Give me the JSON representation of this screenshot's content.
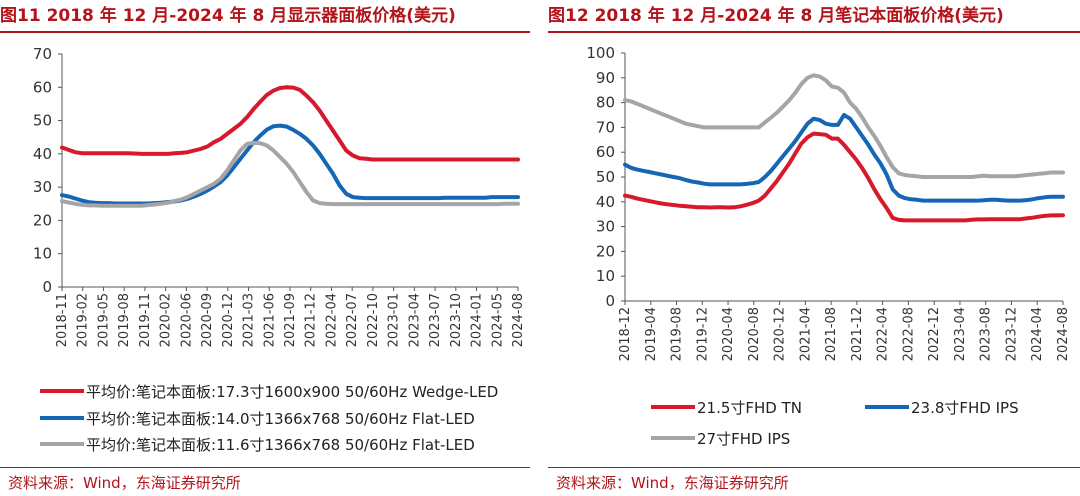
{
  "chart_data": [
    {
      "type": "line",
      "title": "图11  2018 年 12 月-2024 年 8 月显示器面板价格(美元)",
      "source": "资料来源：Wind，东海证券研究所",
      "ylim": [
        0,
        70
      ],
      "yticks": [
        "0",
        "10",
        "20",
        "30",
        "40",
        "50",
        "60",
        "70"
      ],
      "xticks": [
        "2018-11",
        "2019-02",
        "2019-05",
        "2019-08",
        "2019-11",
        "2020-02",
        "2020-06",
        "2020-09",
        "2020-12",
        "2021-03",
        "2021-06",
        "2021-09",
        "2021-12",
        "2022-04",
        "2022-07",
        "2022-10",
        "2023-01",
        "2023-04",
        "2023-07",
        "2023-10",
        "2024-01",
        "2024-05",
        "2024-08"
      ],
      "grid": false,
      "legend_position": "bottom",
      "series": [
        {
          "name": "平均价:笔记本面板:17.3寸1600x900 50/60Hz Wedge-LED",
          "color": "#d7192b",
          "values": [
            41.9,
            41.2,
            40.5,
            40.2,
            40.2,
            40.2,
            40.2,
            40.2,
            40.2,
            40.2,
            40.2,
            40.1,
            40.0,
            40.0,
            40.0,
            40.0,
            40.0,
            40.2,
            40.3,
            40.5,
            41.0,
            41.5,
            42.2,
            43.5,
            44.5,
            46.0,
            47.5,
            49.0,
            51.0,
            53.5,
            55.7,
            57.7,
            59.0,
            59.8,
            60.0,
            59.9,
            59.2,
            57.5,
            55.5,
            53.0,
            50.0,
            47.0,
            44.0,
            41.0,
            39.5,
            38.7,
            38.5,
            38.3,
            38.3,
            38.3,
            38.3,
            38.3,
            38.3,
            38.3,
            38.3,
            38.3,
            38.3,
            38.3,
            38.3,
            38.3,
            38.3,
            38.3,
            38.3,
            38.3,
            38.3,
            38.3,
            38.3,
            38.3,
            38.3,
            38.3
          ]
        },
        {
          "name": "平均价:笔记本面板:14.0寸1366x768 50/60Hz Flat-LED",
          "color": "#1567b5",
          "values": [
            27.6,
            27.2,
            26.6,
            26.0,
            25.5,
            25.3,
            25.2,
            25.2,
            25.1,
            25.1,
            25.1,
            25.1,
            25.1,
            25.1,
            25.2,
            25.3,
            25.5,
            25.7,
            26.0,
            26.5,
            27.2,
            28.0,
            29.0,
            30.2,
            31.5,
            33.5,
            36.0,
            38.5,
            41.0,
            43.5,
            45.5,
            47.3,
            48.3,
            48.5,
            48.2,
            47.2,
            46.0,
            44.5,
            42.5,
            40.0,
            37.0,
            34.0,
            30.5,
            28.0,
            27.0,
            26.8,
            26.7,
            26.7,
            26.7,
            26.7,
            26.7,
            26.7,
            26.7,
            26.7,
            26.7,
            26.7,
            26.7,
            26.7,
            26.8,
            26.8,
            26.8,
            26.8,
            26.8,
            26.8,
            26.8,
            27.0,
            27.0,
            27.0,
            27.0,
            27.0
          ]
        },
        {
          "name": "平均价:笔记本面板:11.6寸1366x768 50/60Hz Flat-LED",
          "color": "#a5a5a5",
          "values": [
            25.8,
            25.4,
            25.0,
            24.7,
            24.5,
            24.5,
            24.4,
            24.4,
            24.4,
            24.4,
            24.4,
            24.4,
            24.4,
            24.6,
            24.8,
            25.0,
            25.3,
            25.8,
            26.3,
            27.0,
            28.0,
            29.0,
            30.0,
            31.0,
            32.5,
            35.0,
            38.0,
            41.0,
            43.0,
            43.3,
            43.2,
            42.5,
            41.0,
            39.0,
            37.0,
            34.5,
            31.5,
            28.5,
            26.0,
            25.2,
            25.0,
            24.9,
            24.9,
            24.9,
            24.9,
            24.9,
            24.9,
            24.9,
            24.9,
            24.9,
            24.9,
            24.9,
            24.9,
            24.9,
            24.9,
            24.9,
            24.9,
            24.9,
            24.9,
            24.9,
            24.9,
            24.9,
            24.9,
            24.9,
            24.9,
            24.9,
            24.9,
            25.0,
            25.0,
            25.0
          ]
        }
      ]
    },
    {
      "type": "line",
      "title": "图12  2018 年 12 月-2024 年 8 月笔记本面板价格(美元)",
      "source": "资料来源：Wind，东海证券研究所",
      "ylim": [
        0,
        100
      ],
      "yticks": [
        "0",
        "10",
        "20",
        "30",
        "40",
        "50",
        "60",
        "70",
        "80",
        "90",
        "100"
      ],
      "xticks": [
        "2018-12",
        "2019-04",
        "2019-08",
        "2019-12",
        "2020-04",
        "2020-08",
        "2020-12",
        "2021-04",
        "2021-08",
        "2021-12",
        "2022-04",
        "2022-08",
        "2022-12",
        "2023-04",
        "2023-08",
        "2023-12",
        "2024-04",
        "2024-08"
      ],
      "grid": false,
      "legend_position": "bottom",
      "series": [
        {
          "name": "21.5寸FHD TN",
          "color": "#d7192b",
          "values": [
            42.5,
            42.0,
            41.3,
            40.8,
            40.3,
            39.8,
            39.3,
            39.0,
            38.7,
            38.4,
            38.2,
            38.0,
            37.8,
            37.8,
            37.7,
            37.8,
            37.8,
            37.7,
            37.8,
            38.2,
            38.8,
            39.5,
            40.5,
            42.5,
            45.5,
            48.5,
            52.0,
            55.5,
            59.5,
            63.5,
            66.0,
            67.5,
            67.3,
            67.0,
            65.5,
            65.5,
            63.0,
            60.0,
            57.0,
            53.5,
            49.5,
            45.0,
            41.0,
            37.5,
            33.5,
            32.7,
            32.5,
            32.5,
            32.5,
            32.5,
            32.5,
            32.5,
            32.5,
            32.5,
            32.5,
            32.5,
            32.5,
            32.8,
            32.9,
            32.9,
            33.0,
            33.0,
            33.0,
            33.0,
            33.0,
            33.0,
            33.3,
            33.6,
            34.0,
            34.3,
            34.5,
            34.5,
            34.6
          ]
        },
        {
          "name": "23.8寸FHD IPS",
          "color": "#1567b5",
          "values": [
            55.0,
            53.7,
            53.0,
            52.5,
            52.0,
            51.5,
            51.0,
            50.5,
            50.0,
            49.5,
            48.8,
            48.2,
            47.8,
            47.3,
            47.0,
            47.0,
            47.0,
            47.0,
            47.0,
            47.0,
            47.2,
            47.5,
            48.0,
            50.0,
            52.5,
            55.5,
            58.5,
            61.5,
            64.5,
            68.0,
            71.5,
            73.5,
            73.0,
            71.5,
            71.0,
            71.0,
            75.0,
            73.5,
            70.0,
            66.5,
            63.0,
            59.0,
            55.5,
            51.0,
            45.0,
            42.5,
            41.5,
            41.0,
            40.8,
            40.5,
            40.5,
            40.5,
            40.5,
            40.5,
            40.5,
            40.5,
            40.5,
            40.5,
            40.5,
            40.6,
            40.8,
            40.8,
            40.6,
            40.5,
            40.5,
            40.5,
            40.7,
            41.0,
            41.5,
            41.8,
            42.0,
            42.0,
            42.0
          ]
        },
        {
          "name": "27寸FHD IPS",
          "color": "#a5a5a5",
          "values": [
            81.0,
            80.5,
            79.5,
            78.5,
            77.5,
            76.5,
            75.5,
            74.5,
            73.5,
            72.5,
            71.5,
            71.0,
            70.5,
            70.0,
            70.0,
            70.0,
            70.0,
            70.0,
            70.0,
            70.0,
            70.0,
            70.0,
            70.0,
            72.0,
            74.0,
            76.0,
            78.5,
            81.0,
            84.0,
            87.5,
            90.0,
            91.0,
            90.5,
            89.0,
            86.5,
            86.0,
            84.0,
            80.0,
            77.5,
            74.0,
            70.0,
            66.5,
            62.5,
            58.0,
            54.0,
            51.5,
            50.8,
            50.5,
            50.3,
            50.0,
            50.0,
            50.0,
            50.0,
            50.0,
            50.0,
            50.0,
            50.0,
            50.0,
            50.3,
            50.5,
            50.3,
            50.3,
            50.3,
            50.3,
            50.3,
            50.5,
            50.8,
            51.0,
            51.3,
            51.5,
            51.8,
            51.8,
            51.8
          ]
        }
      ]
    }
  ]
}
